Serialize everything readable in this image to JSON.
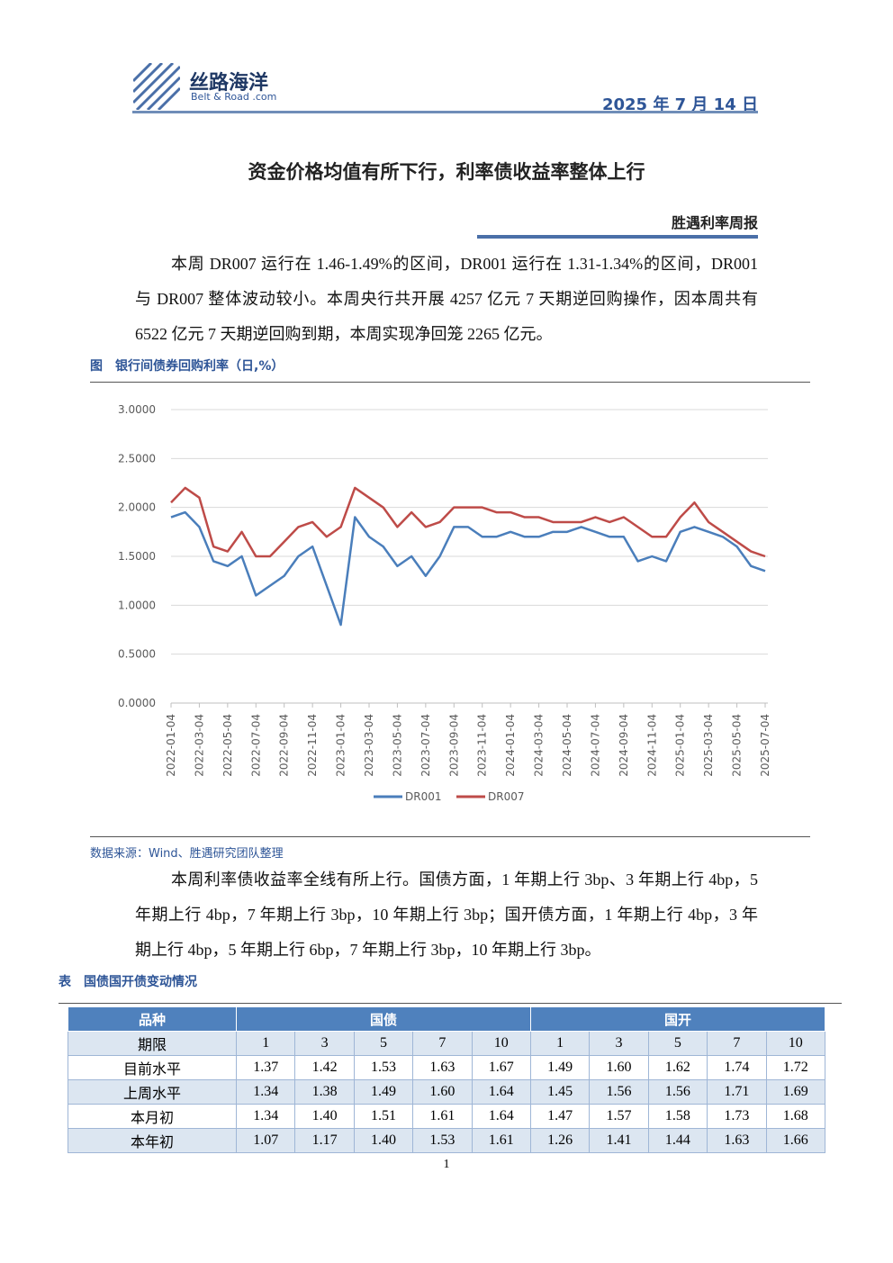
{
  "header": {
    "brand": "丝路海洋",
    "brand_en": "Belt & Road .com",
    "date": "2025 年 7 月 14 日"
  },
  "title": "资金价格均值有所下行，利率债收益率整体上行",
  "report_name": "胜遇利率周报",
  "paragraphs": [
    "本周 DR007 运行在 1.46-1.49%的区间，DR001 运行在 1.31-1.34%的区间，DR001 与 DR007 整体波动较小。本周央行共开展 4257 亿元 7 天期逆回购操作，因本周共有 6522 亿元 7 天期逆回购到期，本周实现净回笼 2265 亿元。",
    "本周利率债收益率全线有所上行。国债方面，1 年期上行 3bp、3 年期上行 4bp，5 年期上行 4bp，7 年期上行 3bp，10 年期上行 3bp；国开债方面，1 年期上行 4bp，3 年期上行 4bp，5 年期上行 6bp，7 年期上行 3bp，10 年期上行 3bp。"
  ],
  "figure": {
    "caption": "图　银行间债券回购利率（日,%）",
    "source": "数据来源：Wind、胜遇研究团队整理",
    "chart_data": {
      "type": "line",
      "categories": [
        "2022-01-04",
        null,
        "2022-03-04",
        null,
        "2022-05-04",
        null,
        "2022-07-04",
        null,
        "2022-09-04",
        null,
        "2022-11-04",
        null,
        "2023-01-04",
        null,
        "2023-03-04",
        null,
        "2023-05-04",
        null,
        "2023-07-04",
        null,
        "2023-09-04",
        null,
        "2023-11-04",
        null,
        "2024-01-04",
        null,
        "2024-03-04",
        null,
        "2024-05-04",
        null,
        "2024-07-04",
        null,
        "2024-09-04",
        null,
        "2024-11-04",
        null,
        "2025-01-04",
        null,
        "2025-03-04",
        null,
        "2025-05-04",
        null,
        "2025-07-04"
      ],
      "series": [
        {
          "name": "DR001",
          "color": "#4a7ebb",
          "values": [
            1.9,
            1.95,
            1.8,
            1.45,
            1.4,
            1.5,
            1.1,
            1.2,
            1.3,
            1.5,
            1.6,
            1.2,
            0.8,
            1.9,
            1.7,
            1.6,
            1.4,
            1.5,
            1.3,
            1.5,
            1.8,
            1.8,
            1.7,
            1.7,
            1.75,
            1.7,
            1.7,
            1.75,
            1.75,
            1.8,
            1.75,
            1.7,
            1.7,
            1.45,
            1.5,
            1.45,
            1.75,
            1.8,
            1.75,
            1.7,
            1.6,
            1.4,
            1.35
          ]
        },
        {
          "name": "DR007",
          "color": "#be4b48",
          "values": [
            2.05,
            2.2,
            2.1,
            1.6,
            1.55,
            1.75,
            1.5,
            1.5,
            1.65,
            1.8,
            1.85,
            1.7,
            1.8,
            2.2,
            2.1,
            2.0,
            1.8,
            1.95,
            1.8,
            1.85,
            2.0,
            2.0,
            2.0,
            1.95,
            1.95,
            1.9,
            1.9,
            1.85,
            1.85,
            1.85,
            1.9,
            1.85,
            1.9,
            1.8,
            1.7,
            1.7,
            1.9,
            2.05,
            1.85,
            1.75,
            1.65,
            1.55,
            1.5
          ]
        }
      ],
      "ylim": [
        0,
        3
      ],
      "yticks": [
        {
          "value": 0,
          "label": "0.0000"
        },
        {
          "value": 0.5,
          "label": "0.5000"
        },
        {
          "value": 1,
          "label": "1.0000"
        },
        {
          "value": 1.5,
          "label": "1.5000"
        },
        {
          "value": 2,
          "label": "2.0000"
        },
        {
          "value": 2.5,
          "label": "2.5000"
        },
        {
          "value": 3,
          "label": "3.0000"
        }
      ],
      "grid": true,
      "legend": "bottom"
    }
  },
  "table": {
    "caption": "表　国债国开债变动情况",
    "group_header": [
      "品种",
      "国债",
      "国开"
    ],
    "term_row": [
      "期限",
      "1",
      "3",
      "5",
      "7",
      "10",
      "1",
      "3",
      "5",
      "7",
      "10"
    ],
    "rows": [
      [
        "目前水平",
        "1.37",
        "1.42",
        "1.53",
        "1.63",
        "1.67",
        "1.49",
        "1.60",
        "1.62",
        "1.74",
        "1.72"
      ],
      [
        "上周水平",
        "1.34",
        "1.38",
        "1.49",
        "1.60",
        "1.64",
        "1.45",
        "1.56",
        "1.56",
        "1.71",
        "1.69"
      ],
      [
        "本月初",
        "1.34",
        "1.40",
        "1.51",
        "1.61",
        "1.64",
        "1.47",
        "1.57",
        "1.58",
        "1.73",
        "1.68"
      ],
      [
        "本年初",
        "1.07",
        "1.17",
        "1.40",
        "1.53",
        "1.61",
        "1.26",
        "1.41",
        "1.44",
        "1.63",
        "1.66"
      ]
    ]
  },
  "page_number": "1"
}
